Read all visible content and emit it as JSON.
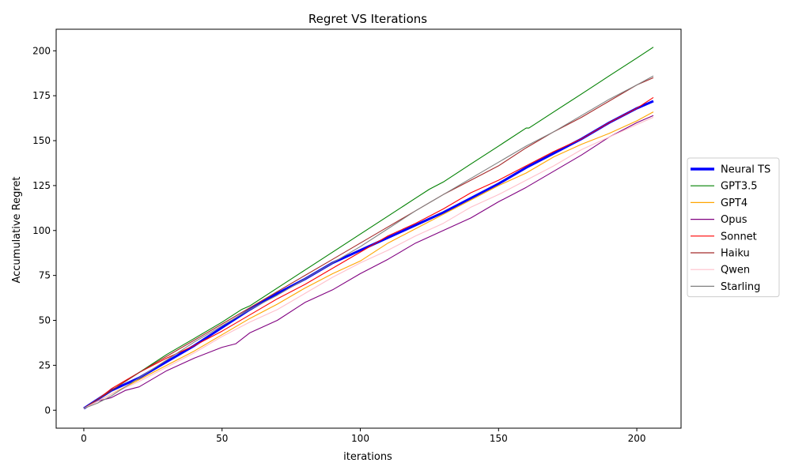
{
  "chart_data": {
    "type": "line",
    "title": "Regret VS Iterations",
    "xlabel": "iterations",
    "ylabel": "Accumulative Regret",
    "xlim": [
      -10,
      216
    ],
    "ylim": [
      -10,
      212
    ],
    "xticks": [
      0,
      50,
      100,
      150,
      200
    ],
    "yticks": [
      0,
      25,
      50,
      75,
      100,
      125,
      150,
      175,
      200
    ],
    "grid": false,
    "legend_position": "center-right-outside",
    "series": [
      {
        "name": "Neural TS",
        "color": "#0000ff",
        "emphasis": true,
        "x": [
          0,
          5,
          10,
          20,
          30,
          40,
          50,
          60,
          70,
          80,
          90,
          100,
          110,
          120,
          130,
          140,
          150,
          160,
          170,
          180,
          190,
          200,
          206
        ],
        "values": [
          1,
          6,
          11,
          18,
          27,
          36,
          46,
          56,
          65,
          73,
          82,
          89,
          96,
          103,
          110,
          118,
          126,
          135,
          143,
          151,
          160,
          168,
          172
        ]
      },
      {
        "name": "GPT3.5",
        "color": "#008000",
        "emphasis": false,
        "x": [
          0,
          5,
          10,
          20,
          30,
          40,
          50,
          57,
          60,
          70,
          80,
          90,
          100,
          110,
          120,
          125,
          130,
          140,
          150,
          160,
          161,
          170,
          180,
          190,
          200,
          206
        ],
        "values": [
          1,
          6,
          11,
          21,
          31,
          40,
          49,
          56,
          58,
          68,
          78,
          88,
          98,
          108,
          118,
          123,
          127,
          137,
          147,
          157,
          157,
          166,
          176,
          186,
          196,
          202
        ]
      },
      {
        "name": "GPT4",
        "color": "#ffa500",
        "emphasis": false,
        "x": [
          0,
          5,
          10,
          20,
          30,
          40,
          50,
          60,
          70,
          80,
          90,
          100,
          110,
          120,
          130,
          140,
          150,
          160,
          170,
          180,
          190,
          200,
          206
        ],
        "values": [
          1,
          5,
          9,
          17,
          25,
          33,
          42,
          51,
          59,
          68,
          76,
          83,
          93,
          101,
          109,
          117,
          125,
          132,
          141,
          148,
          154,
          161,
          166
        ]
      },
      {
        "name": "Opus",
        "color": "#800080",
        "emphasis": false,
        "x": [
          0,
          5,
          10,
          15,
          20,
          30,
          40,
          50,
          55,
          60,
          70,
          80,
          90,
          100,
          110,
          120,
          130,
          140,
          150,
          160,
          170,
          180,
          190,
          200,
          206
        ],
        "values": [
          1,
          5,
          7,
          11,
          13,
          22,
          29,
          35,
          37,
          43,
          50,
          60,
          67,
          76,
          84,
          93,
          100,
          107,
          116,
          124,
          133,
          142,
          152,
          160,
          164
        ]
      },
      {
        "name": "Sonnet",
        "color": "#ff0000",
        "emphasis": false,
        "x": [
          0,
          5,
          10,
          20,
          30,
          40,
          50,
          60,
          70,
          80,
          90,
          100,
          110,
          120,
          130,
          140,
          150,
          160,
          170,
          180,
          190,
          200,
          206
        ],
        "values": [
          1,
          6,
          12,
          21,
          29,
          36,
          44,
          53,
          62,
          70,
          79,
          88,
          97,
          104,
          112,
          121,
          128,
          136,
          144,
          151,
          160,
          168,
          174
        ]
      },
      {
        "name": "Haiku",
        "color": "#a52a2a",
        "emphasis": false,
        "x": [
          0,
          5,
          10,
          20,
          30,
          40,
          50,
          60,
          70,
          80,
          90,
          100,
          110,
          120,
          130,
          140,
          150,
          160,
          170,
          180,
          190,
          200,
          206
        ],
        "values": [
          1,
          6,
          11,
          21,
          30,
          39,
          48,
          57,
          66,
          75,
          84,
          93,
          102,
          111,
          120,
          128,
          136,
          146,
          155,
          163,
          172,
          181,
          185
        ]
      },
      {
        "name": "Qwen",
        "color": "#ffc0cb",
        "emphasis": false,
        "x": [
          0,
          5,
          10,
          20,
          30,
          40,
          50,
          60,
          70,
          80,
          90,
          100,
          110,
          120,
          130,
          140,
          150,
          160,
          170,
          180,
          190,
          200,
          206
        ],
        "values": [
          1,
          5,
          9,
          16,
          24,
          32,
          41,
          49,
          56,
          65,
          74,
          82,
          89,
          97,
          104,
          113,
          120,
          128,
          136,
          145,
          152,
          159,
          163
        ]
      },
      {
        "name": "Starling",
        "color": "#808080",
        "emphasis": false,
        "x": [
          0,
          5,
          10,
          20,
          30,
          40,
          50,
          60,
          70,
          80,
          90,
          100,
          110,
          120,
          130,
          140,
          150,
          160,
          170,
          180,
          190,
          200,
          206
        ],
        "values": [
          1,
          4,
          8,
          18,
          28,
          38,
          47,
          56,
          64,
          73,
          82,
          91,
          101,
          111,
          120,
          129,
          138,
          147,
          155,
          164,
          173,
          181,
          186
        ]
      }
    ]
  }
}
